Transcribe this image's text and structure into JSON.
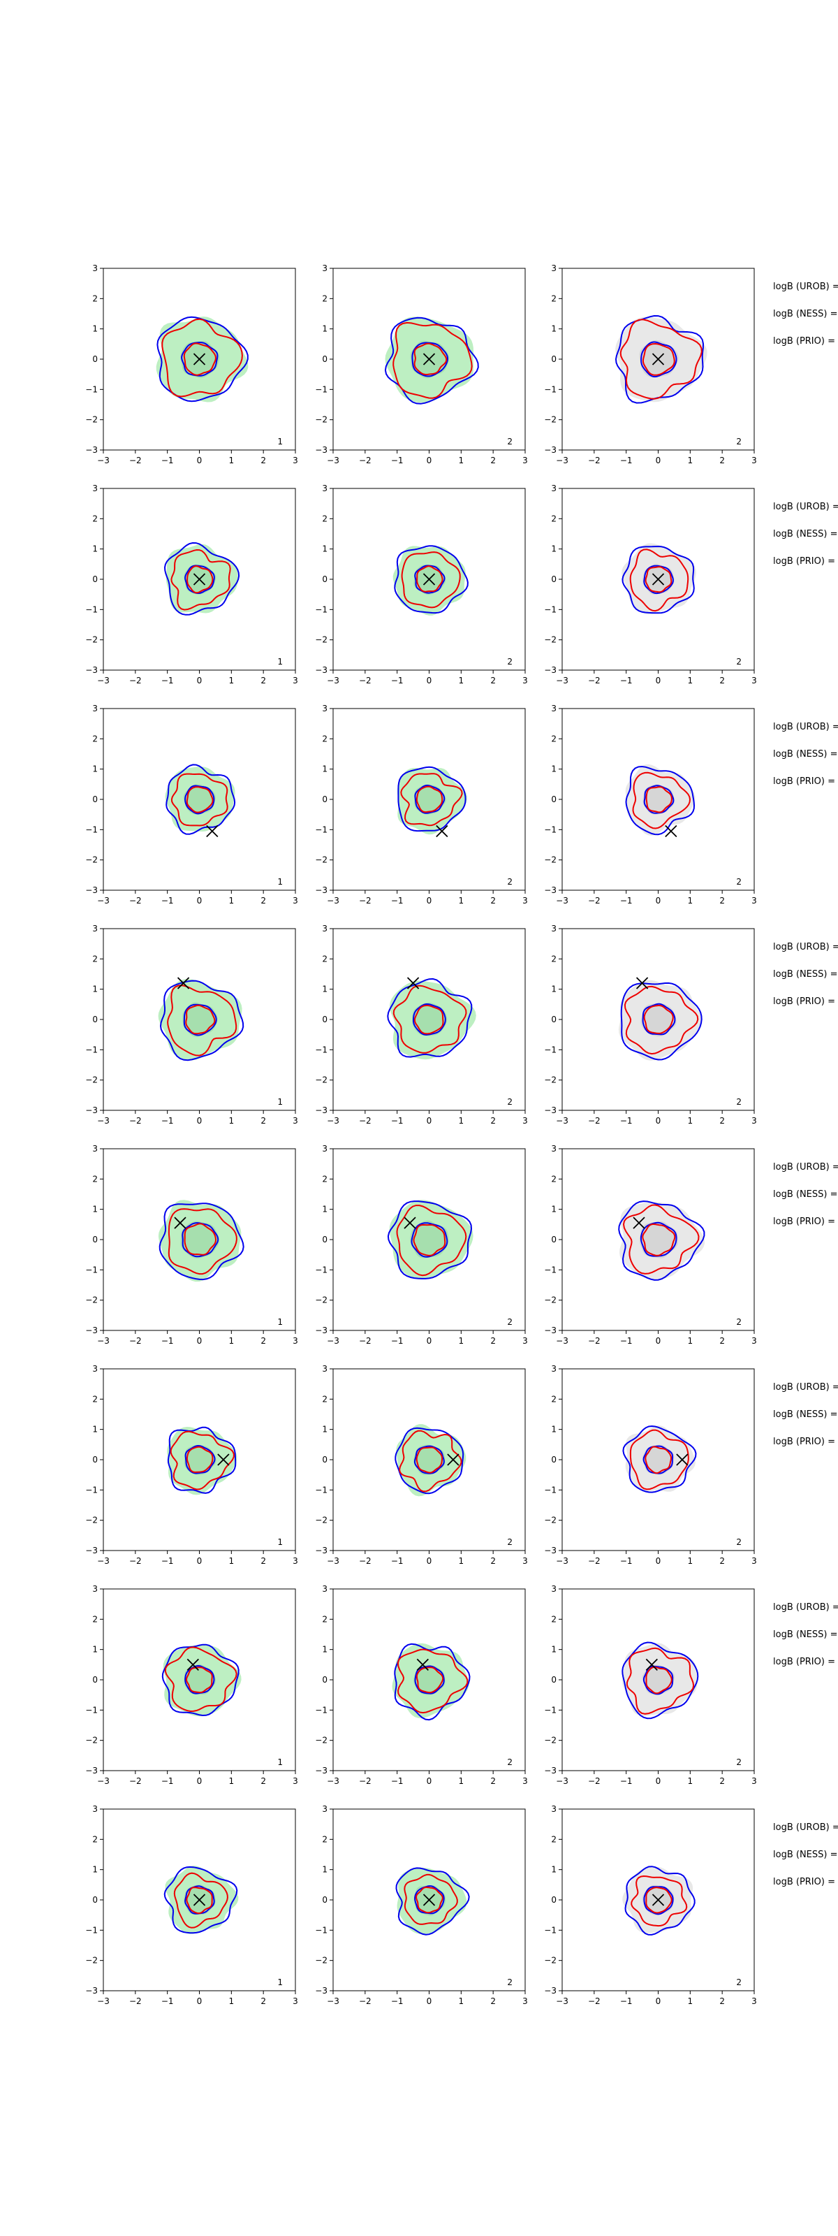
{
  "figure": {
    "background": "#ffffff"
  },
  "colors": {
    "blue": "#0000ee",
    "red": "#ee0000",
    "green_fill": "#bdefc2",
    "green_core": "#a6dfae",
    "grey_fill": "#e8e8e8",
    "grey_core": "#d6d6d6",
    "marker": "#000000"
  },
  "chart_data": {
    "type": "contour",
    "grid": false,
    "xlim": [
      -3,
      3
    ],
    "ylim": [
      -3,
      3
    ],
    "xticks": [
      "−3",
      "−2",
      "−1",
      "0",
      "1",
      "2",
      "3"
    ],
    "yticks": [
      "3",
      "2",
      "1",
      "0",
      "−1",
      "−2",
      "−3"
    ],
    "columns": [
      {
        "fill": "green",
        "corner_label": "1"
      },
      {
        "fill": "green",
        "corner_label": "2"
      },
      {
        "fill": "grey",
        "corner_label": "2"
      }
    ],
    "side_labels": [
      "logB (UROB) =",
      "logB (NESS) =",
      "logB (PRIO) ="
    ],
    "rows": [
      {
        "marker": [
          0.0,
          0.0
        ],
        "blue_outer": 1.35,
        "red_outer": 1.2,
        "inner": 0.55,
        "shift": [
          0,
          0
        ]
      },
      {
        "marker": [
          0.0,
          0.0
        ],
        "blue_outer": 1.1,
        "red_outer": 0.9,
        "inner": 0.45,
        "shift": [
          0,
          0
        ]
      },
      {
        "marker": [
          0.4,
          -1.05
        ],
        "blue_outer": 1.05,
        "red_outer": 0.85,
        "inner": 0.45,
        "shift": [
          0,
          0
        ]
      },
      {
        "marker": [
          -0.5,
          1.2
        ],
        "blue_outer": 1.25,
        "red_outer": 1.05,
        "inner": 0.5,
        "shift": [
          0,
          0
        ]
      },
      {
        "marker": [
          -0.6,
          0.55
        ],
        "blue_outer": 1.25,
        "red_outer": 1.05,
        "inner": 0.55,
        "shift": [
          0,
          0
        ]
      },
      {
        "marker": [
          0.75,
          0.0
        ],
        "blue_outer": 1.05,
        "red_outer": 0.9,
        "inner": 0.45,
        "shift": [
          0,
          0
        ]
      },
      {
        "marker": [
          -0.2,
          0.5
        ],
        "blue_outer": 1.15,
        "red_outer": 1.0,
        "inner": 0.45,
        "shift": [
          0,
          0
        ]
      },
      {
        "marker": [
          0.0,
          0.0
        ],
        "blue_outer": 1.05,
        "red_outer": 0.8,
        "inner": 0.45,
        "shift": [
          0,
          0
        ]
      }
    ]
  }
}
